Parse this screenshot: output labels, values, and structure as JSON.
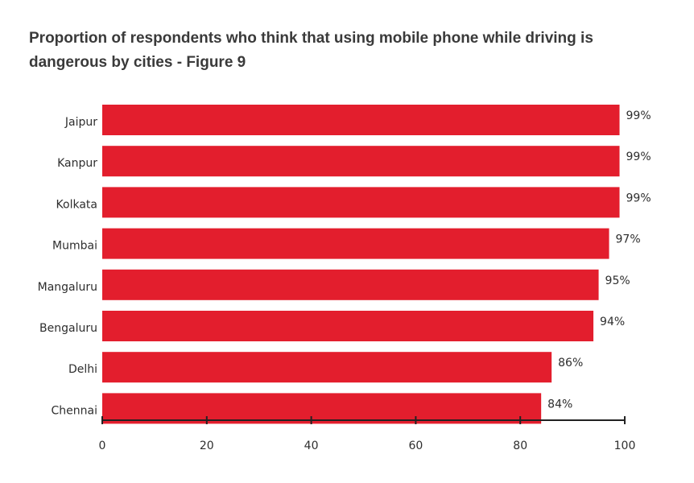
{
  "chart_data": {
    "type": "bar",
    "orientation": "horizontal",
    "title": "Proportion of respondents who think that using mobile phone while driving is dangerous by cities - Figure 9",
    "categories": [
      "Jaipur",
      "Kanpur",
      "Kolkata",
      "Mumbai",
      "Mangaluru",
      "Bengaluru",
      "Delhi",
      "Chennai"
    ],
    "values": [
      99,
      99,
      99,
      97,
      95,
      94,
      86,
      84
    ],
    "value_labels": [
      "99%",
      "99%",
      "99%",
      "97%",
      "95%",
      "94%",
      "86%",
      "84%"
    ],
    "xlabel": "",
    "ylabel": "",
    "xlim": [
      0,
      100
    ],
    "xticks": [
      "0",
      "20",
      "40",
      "60",
      "80",
      "100"
    ],
    "grid": false,
    "bar_color": "#e31e2d"
  }
}
